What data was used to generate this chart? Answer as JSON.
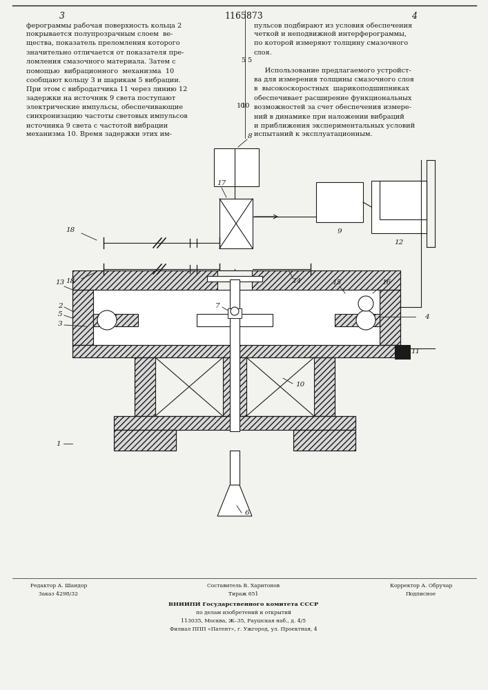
{
  "page_number_left": "3",
  "patent_number": "1165873",
  "page_number_right": "4",
  "bg_color": "#f2f2ee",
  "text_color": "#1a1a1a",
  "line_color": "#1a1a1a",
  "left_column_text": [
    "ферограммы рабочая поверхность кольца 2",
    "покрывается полупрозрачным слоем  ве-",
    "щества, показатель преломления которого",
    "значительно отличается от показателя пре-",
    "ломления смазочного материала. Затем с",
    "помощью  вибрационного  механизма  10",
    "сообщают кольцу 3 и шарикам 5 вибрации.",
    "При этом с вибродатчика 11 через линию 12",
    "задержки на источник 9 света поступают",
    "электрические импульсы, обеспечивающие",
    "синхронизацию частоты световых импульсов",
    "источника 9 света с частотой вибрации",
    "механизма 10. Время задержки этих им-"
  ],
  "right_column_text": [
    "пульсов подбирают из условия обеспечения",
    "четкой и неподвижной интерферограммы,",
    "по которой измеряют толщину смазочного",
    "слоя.",
    "",
    "     Использование предлагаемого устройст-",
    "ва для измерения толщины смазочного слоя",
    "в  высокоскоростных  шарикоподшипниках",
    "обеспечивает расширение функциональных",
    "возможностей за счет обеспечения измере-",
    "ний в динамике при наложении вибраций",
    "и приближения экспериментальных условий",
    "испытаний к эксплуатационным."
  ],
  "footer_lines": [
    "Редактор А. Шандор",
    "Составитель В. Харитонов",
    "Корректор А. Обручар",
    "Заказ 4298/32",
    "Тираж 651",
    "Подписное",
    "ВНИИПИ Государственного комитета СССР",
    "по делам изобретений и открытий",
    "113035, Москва, Ж–35, Раушская наб., д. 4/5",
    "Филиал ППП «Патент», г. Ужгород, ул. Проектная, 4"
  ]
}
